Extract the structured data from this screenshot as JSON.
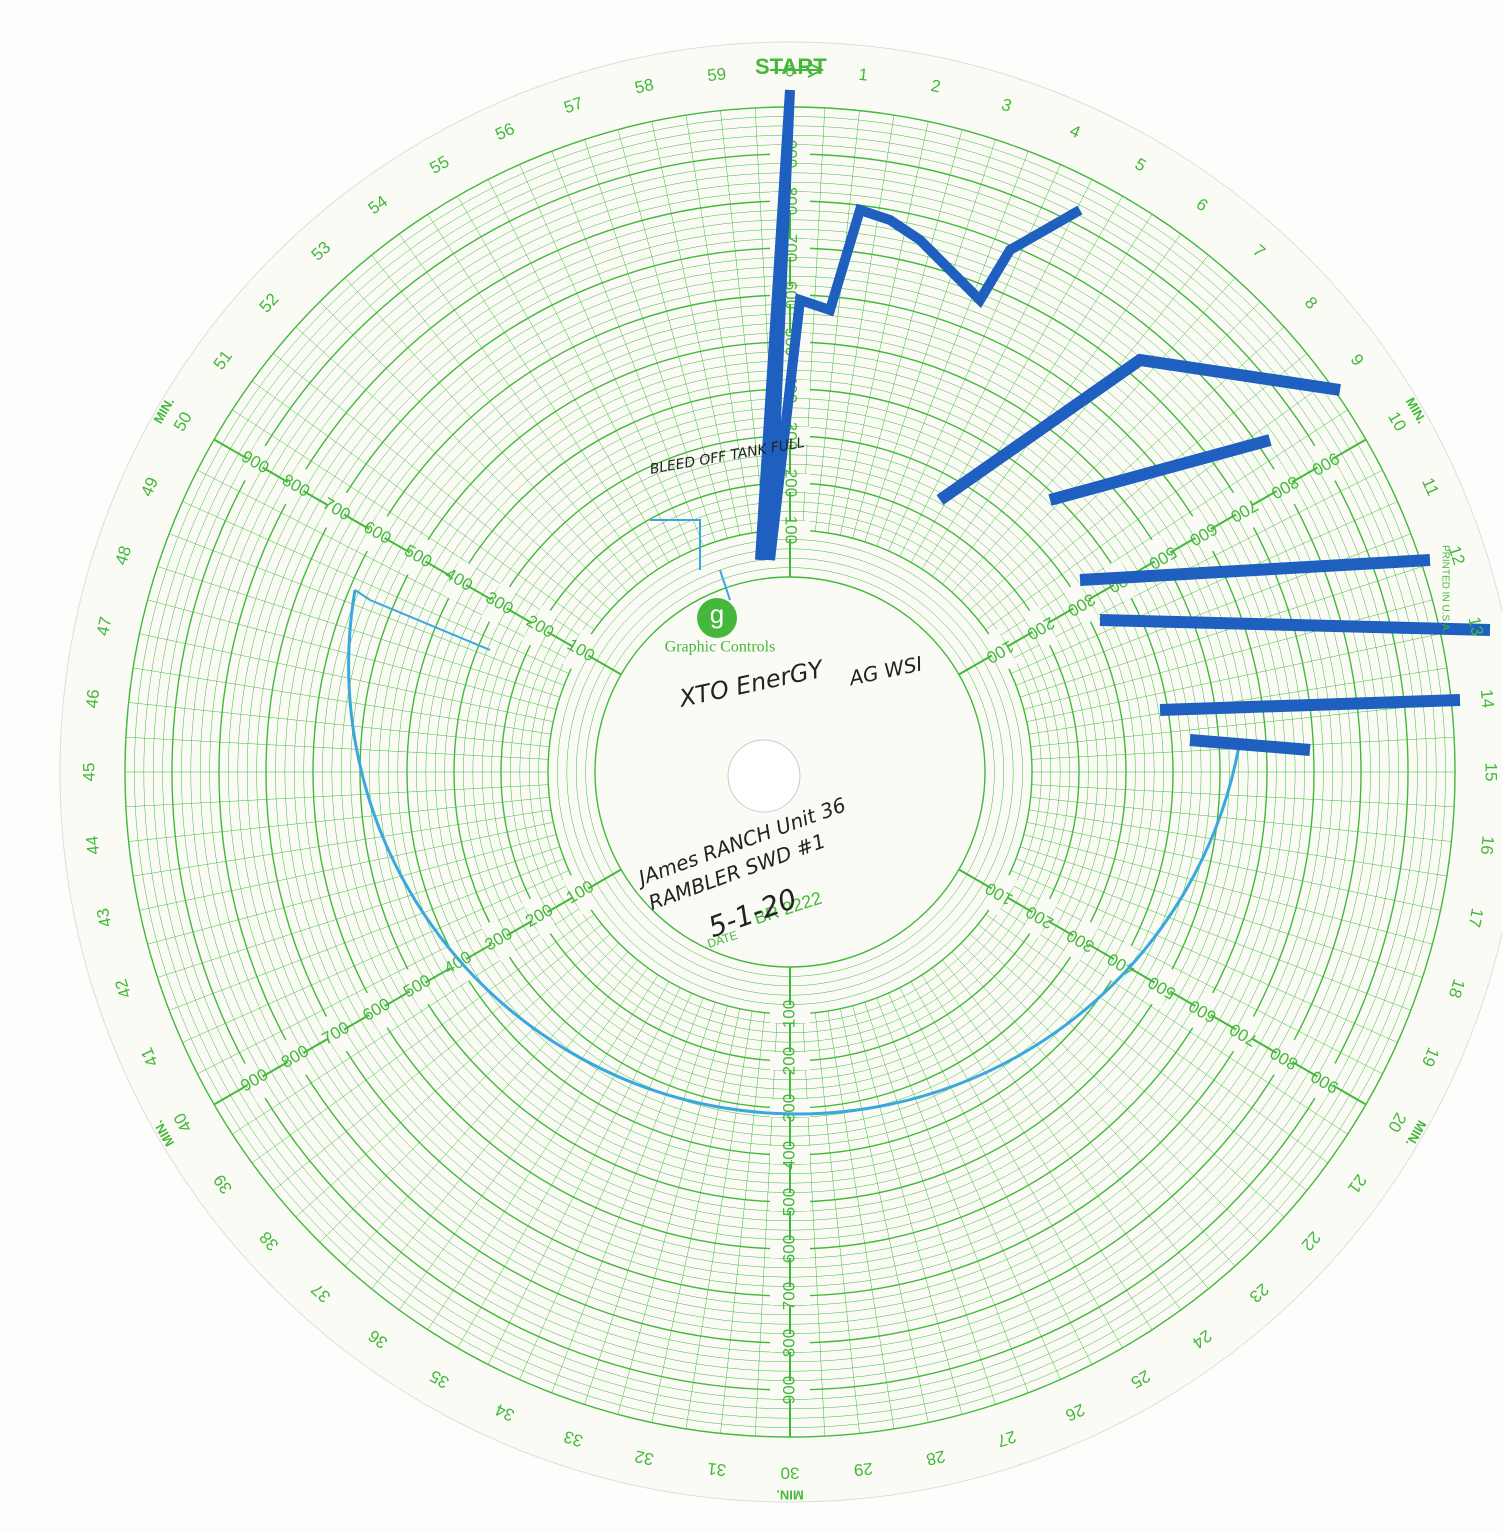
{
  "start_label": "START",
  "minute_labels": [
    "0",
    "1",
    "2",
    "3",
    "4",
    "5",
    "6",
    "7",
    "8",
    "9",
    "10",
    "11",
    "12",
    "13",
    "14",
    "15",
    "16",
    "17",
    "18",
    "19",
    "20",
    "21",
    "22",
    "23",
    "24",
    "25",
    "26",
    "27",
    "28",
    "29",
    "30",
    "31",
    "32",
    "33",
    "34",
    "35",
    "36",
    "37",
    "38",
    "39",
    "40",
    "41",
    "42",
    "43",
    "44",
    "45",
    "46",
    "47",
    "48",
    "49",
    "50",
    "51",
    "52",
    "53",
    "54",
    "55",
    "56",
    "57",
    "58",
    "59"
  ],
  "min_label": "MIN.",
  "scale_labels": [
    "100",
    "200",
    "300",
    "400",
    "500",
    "600",
    "700",
    "800",
    "900"
  ],
  "logo": "g",
  "brand": "Graphic Controls",
  "date_label": "DATE",
  "chart_code": "BR 2222",
  "printed": "PRINTED IN U.S.A.",
  "notes": [
    "XTO EnerGY",
    "AG WSI",
    "JAmes RANCH Unit 36",
    "RAMBLER SWD #1",
    "5-1-20",
    "BLEED OFF TANK FULL"
  ]
}
